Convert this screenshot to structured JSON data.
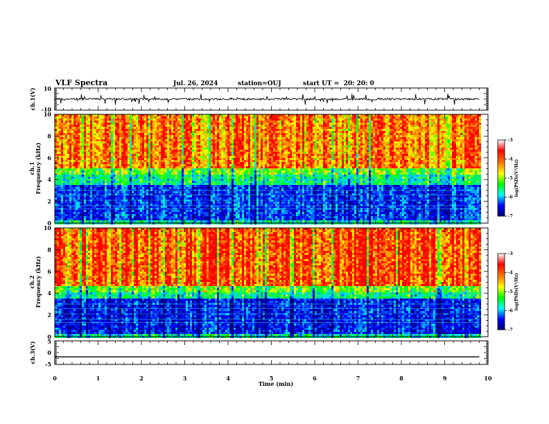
{
  "chart_data": {
    "type": "heatmap",
    "title": "VLF Spectra",
    "date": "Jul. 26, 2024",
    "station": "station=OUJ",
    "start_ut": "start UT =  20: 20: 0",
    "xlabel": "Time (min)",
    "xlim": [
      0,
      10
    ],
    "x_ticks": [
      "0",
      "1",
      "2",
      "3",
      "4",
      "5",
      "6",
      "7",
      "8",
      "9",
      "10"
    ],
    "data_end_min": 9.8,
    "grid": false,
    "colormap": "rainbow",
    "panels": [
      {
        "id": "ch1-waveform",
        "type": "line",
        "ylabel": "ch.1(V)",
        "ylim": [
          -10,
          10
        ],
        "y_tick_labels": [
          "10",
          "-10"
        ],
        "baseline_v": 0,
        "spike_amplitude_v": 5
      },
      {
        "id": "ch1-spectrogram",
        "type": "heatmap",
        "ylabel": "ch.1\nFrequency (kHz)",
        "ylim": [
          0,
          10
        ],
        "y_tick_labels": [
          "0",
          "2",
          "4",
          "6",
          "8",
          "10"
        ],
        "colorbar": {
          "label": "log(PSD)(V²/Hz)",
          "range": [
            -7,
            -3
          ],
          "tick_labels": [
            "-3",
            "-4",
            "-5",
            "-6",
            "-7"
          ]
        },
        "band_boundary_khz": 4.5
      },
      {
        "id": "ch2-spectrogram",
        "type": "heatmap",
        "ylabel": "ch.2\nFrequency (kHz)",
        "ylim": [
          0,
          10
        ],
        "y_tick_labels": [
          "0",
          "2",
          "4",
          "6",
          "8",
          "10"
        ],
        "colorbar": {
          "label": "log(PSD)(V²/Hz)",
          "range": [
            -7,
            -3
          ],
          "tick_labels": [
            "-3",
            "-4",
            "-5",
            "-6",
            "-7"
          ]
        },
        "band_boundary_khz": 4.2
      },
      {
        "id": "ch3-waveform",
        "type": "line",
        "ylabel": "ch.3(V)",
        "ylim": [
          -5,
          5
        ],
        "y_tick_labels": [
          "5",
          "0",
          "-5"
        ],
        "constant_v": -1.8
      }
    ]
  }
}
